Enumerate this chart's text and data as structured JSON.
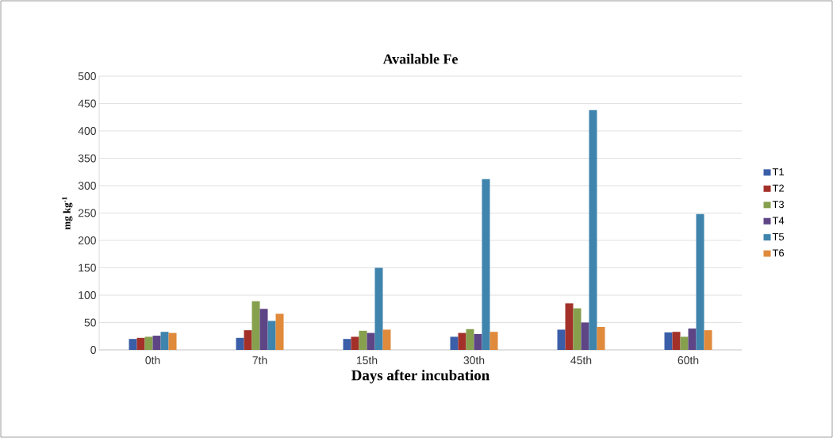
{
  "chart_data": {
    "type": "bar",
    "title": "Available Fe",
    "xlabel": "Days after incubation",
    "ylabel": "mg kg$^{-1}$",
    "categories": [
      "0th",
      "7th",
      "15th",
      "30th",
      "45th",
      "60th"
    ],
    "series": [
      {
        "name": "T1",
        "color": "#3a5ea8",
        "values": [
          20,
          22,
          20,
          24,
          37,
          32
        ]
      },
      {
        "name": "T2",
        "color": "#a33129",
        "values": [
          22,
          36,
          24,
          31,
          85,
          33
        ]
      },
      {
        "name": "T3",
        "color": "#86a04e",
        "values": [
          24,
          89,
          35,
          38,
          76,
          24
        ]
      },
      {
        "name": "T4",
        "color": "#5e4586",
        "values": [
          26,
          75,
          31,
          29,
          50,
          39
        ]
      },
      {
        "name": "T5",
        "color": "#3f84ad",
        "values": [
          33,
          53,
          150,
          312,
          438,
          248
        ]
      },
      {
        "name": "T6",
        "color": "#e08a3c",
        "values": [
          31,
          66,
          37,
          33,
          42,
          36
        ]
      }
    ],
    "ylim": [
      0,
      500
    ],
    "yticks": [
      0,
      50,
      100,
      150,
      200,
      250,
      300,
      350,
      400,
      450,
      500
    ],
    "grid": "y",
    "legend": "right"
  }
}
